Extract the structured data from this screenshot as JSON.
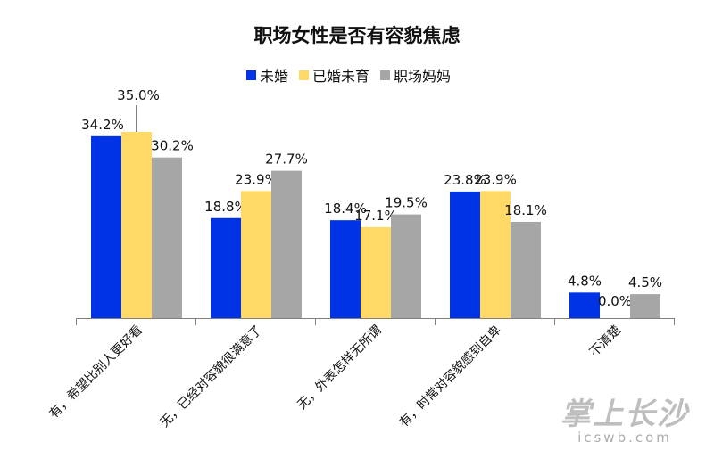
{
  "chart_data": {
    "type": "bar",
    "title": "职场女性是否有容貌焦虑",
    "categories": [
      "有，希望比别人更好看",
      "无，已经对容貌很满意了",
      "无，外表怎样无所谓",
      "有，时常对容貌感到自卑",
      "不清楚"
    ],
    "series": [
      {
        "name": "未婚",
        "color": "#0033e6",
        "values": [
          34.2,
          18.8,
          18.4,
          23.8,
          4.8
        ],
        "labels": [
          "34.2%",
          "18.8%",
          "18.4%",
          "23.8%",
          "4.8%"
        ]
      },
      {
        "name": "已婚未育",
        "color": "#ffd966",
        "values": [
          35.0,
          23.9,
          17.1,
          23.9,
          0.0
        ],
        "labels": [
          "35.0%",
          "23.9%",
          "17.1%",
          "23.9%",
          "0.0%"
        ]
      },
      {
        "name": "职场妈妈",
        "color": "#a6a6a6",
        "values": [
          30.2,
          27.7,
          19.5,
          18.1,
          4.5
        ],
        "labels": [
          "30.2%",
          "27.7%",
          "19.5%",
          "18.1%",
          "4.5%"
        ]
      }
    ],
    "ylim": [
      0,
      40
    ],
    "legend_position": "top",
    "grid": false
  },
  "watermark": {
    "main": "掌上长沙",
    "sub": "icswb.com"
  }
}
